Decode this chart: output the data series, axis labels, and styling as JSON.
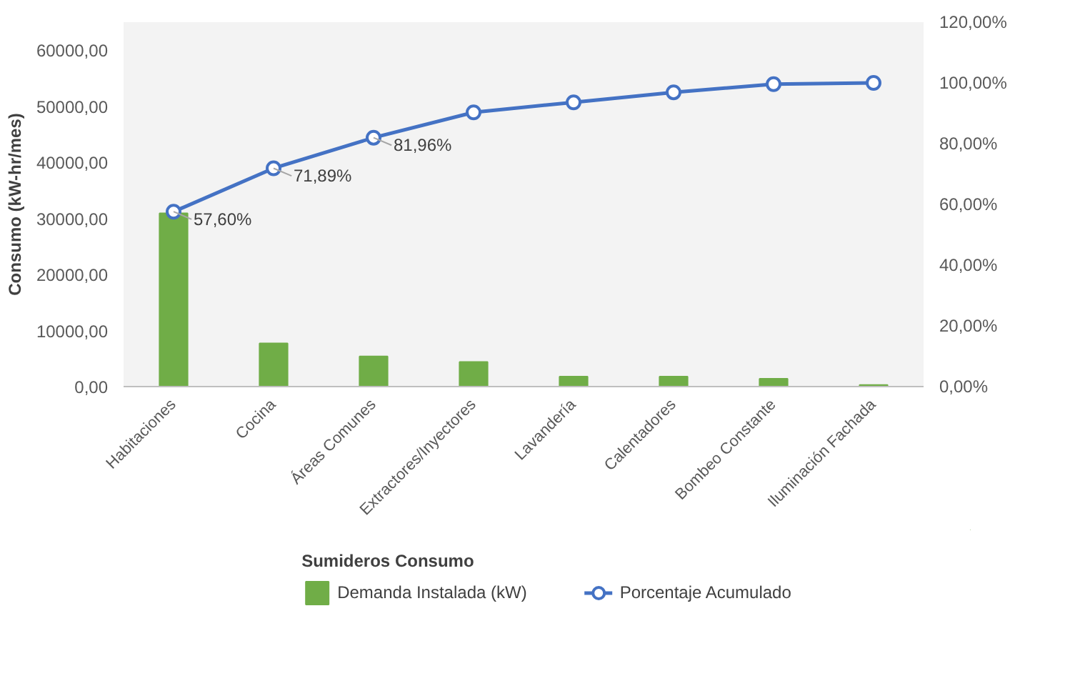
{
  "chart_data": {
    "type": "bar",
    "categories": [
      "Habitaciones",
      "Cocina",
      "Áreas Comunes",
      "Extractores/Inyectores",
      "Lavandería",
      "Calentadores",
      "Bombeo Constante",
      "Iluminación Fachada"
    ],
    "series": [
      {
        "name": "Demanda Instalada (kW)",
        "color": "#70ad47",
        "values": [
          30900,
          7700,
          5400,
          4400,
          1800,
          1800,
          1400,
          300
        ]
      },
      {
        "name": "Porcentaje Acumulado",
        "type": "line",
        "axis": "y2",
        "color": "#4472c4",
        "marker": "circle",
        "values": [
          57.6,
          71.89,
          81.96,
          90.3,
          93.6,
          96.9,
          99.6,
          100
        ],
        "value_labels": [
          "57,60%",
          "71,89%",
          "81,96%",
          null,
          null,
          null,
          null,
          null
        ]
      }
    ],
    "ylabel": "Consumo (kW-hr/mes)",
    "legend_title": "Sumideros Consumo",
    "ylim": [
      0,
      65000
    ],
    "yticks": [
      {
        "value": 0,
        "label": "0,00"
      },
      {
        "value": 10000,
        "label": "10000,00"
      },
      {
        "value": 20000,
        "label": "20000,00"
      },
      {
        "value": 30000,
        "label": "30000,00"
      },
      {
        "value": 40000,
        "label": "40000,00"
      },
      {
        "value": 50000,
        "label": "50000,00"
      },
      {
        "value": 60000,
        "label": "60000,00"
      }
    ],
    "y2lim": [
      0,
      120
    ],
    "y2ticks": [
      {
        "value": 0,
        "label": "0,00%"
      },
      {
        "value": 20,
        "label": "20,00%"
      },
      {
        "value": 40,
        "label": "40,00%"
      },
      {
        "value": 60,
        "label": "60,00%"
      },
      {
        "value": 80,
        "label": "80,00%"
      },
      {
        "value": 100,
        "label": "100,00%"
      },
      {
        "value": 120,
        "label": "120,00%"
      }
    ],
    "grid": false,
    "legend": "bottom"
  }
}
